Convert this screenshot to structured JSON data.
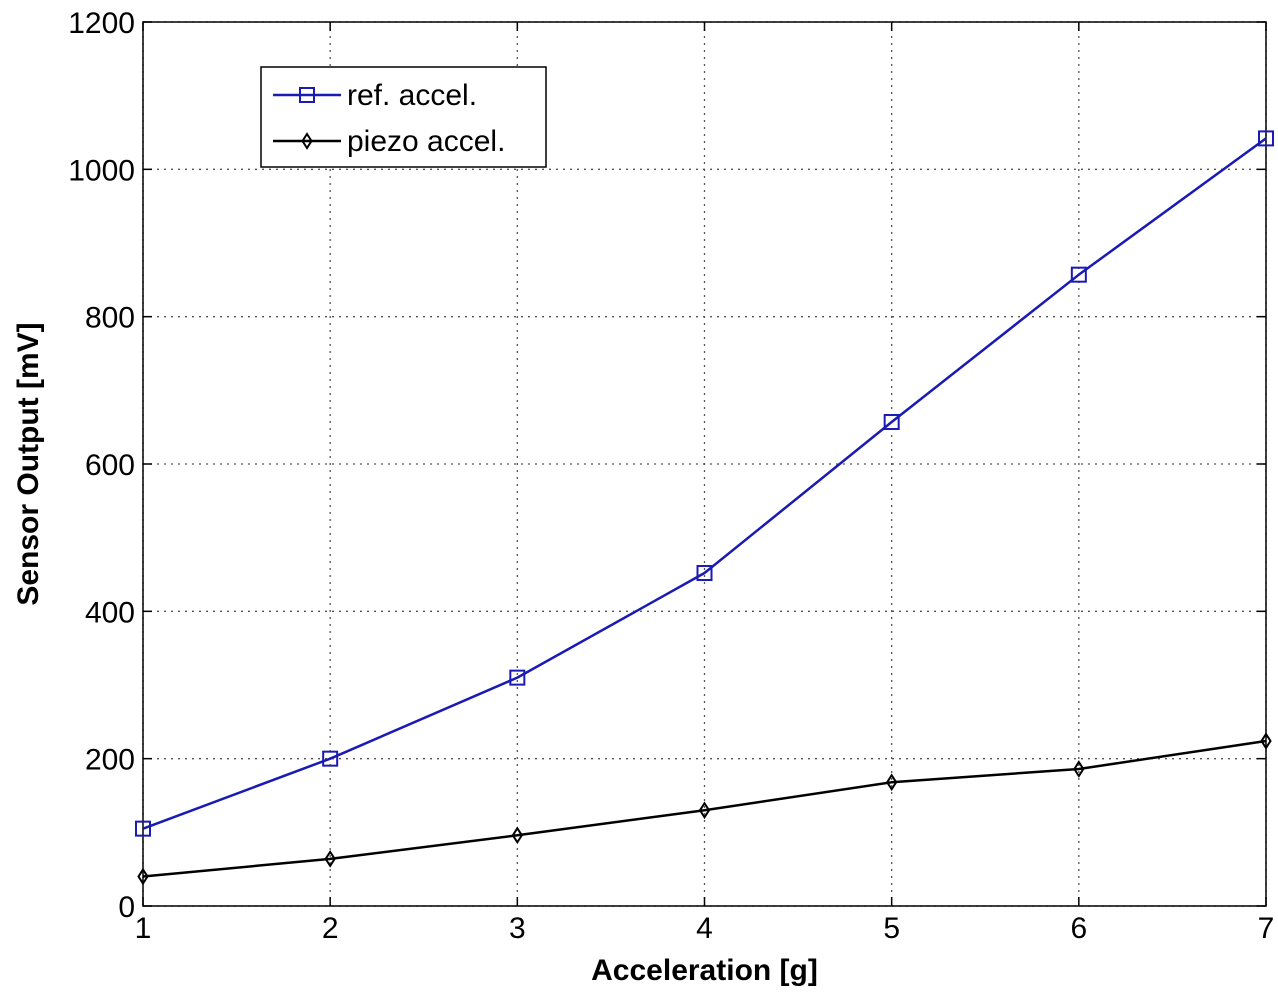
{
  "chart_data": {
    "type": "line",
    "title": "",
    "xlabel": "Acceleration [g]",
    "ylabel": "Sensor Output [mV]",
    "xlim": [
      1,
      7
    ],
    "ylim": [
      0,
      1200
    ],
    "xticks": [
      "1",
      "2",
      "3",
      "4",
      "5",
      "6",
      "7"
    ],
    "yticks": [
      "0",
      "200",
      "400",
      "600",
      "800",
      "1000",
      "1200"
    ],
    "grid": true,
    "legend_position": "top-left",
    "x": [
      1,
      2,
      3,
      4,
      5,
      6,
      7
    ],
    "series": [
      {
        "name": "ref. accel.",
        "color": "#1a1ab4",
        "marker": "square",
        "values": [
          105,
          200,
          310,
          452,
          657,
          857,
          1042
        ]
      },
      {
        "name": "piezo accel.",
        "color": "#000000",
        "marker": "diamond",
        "values": [
          40,
          64,
          96,
          130,
          168,
          186,
          224
        ]
      }
    ]
  }
}
